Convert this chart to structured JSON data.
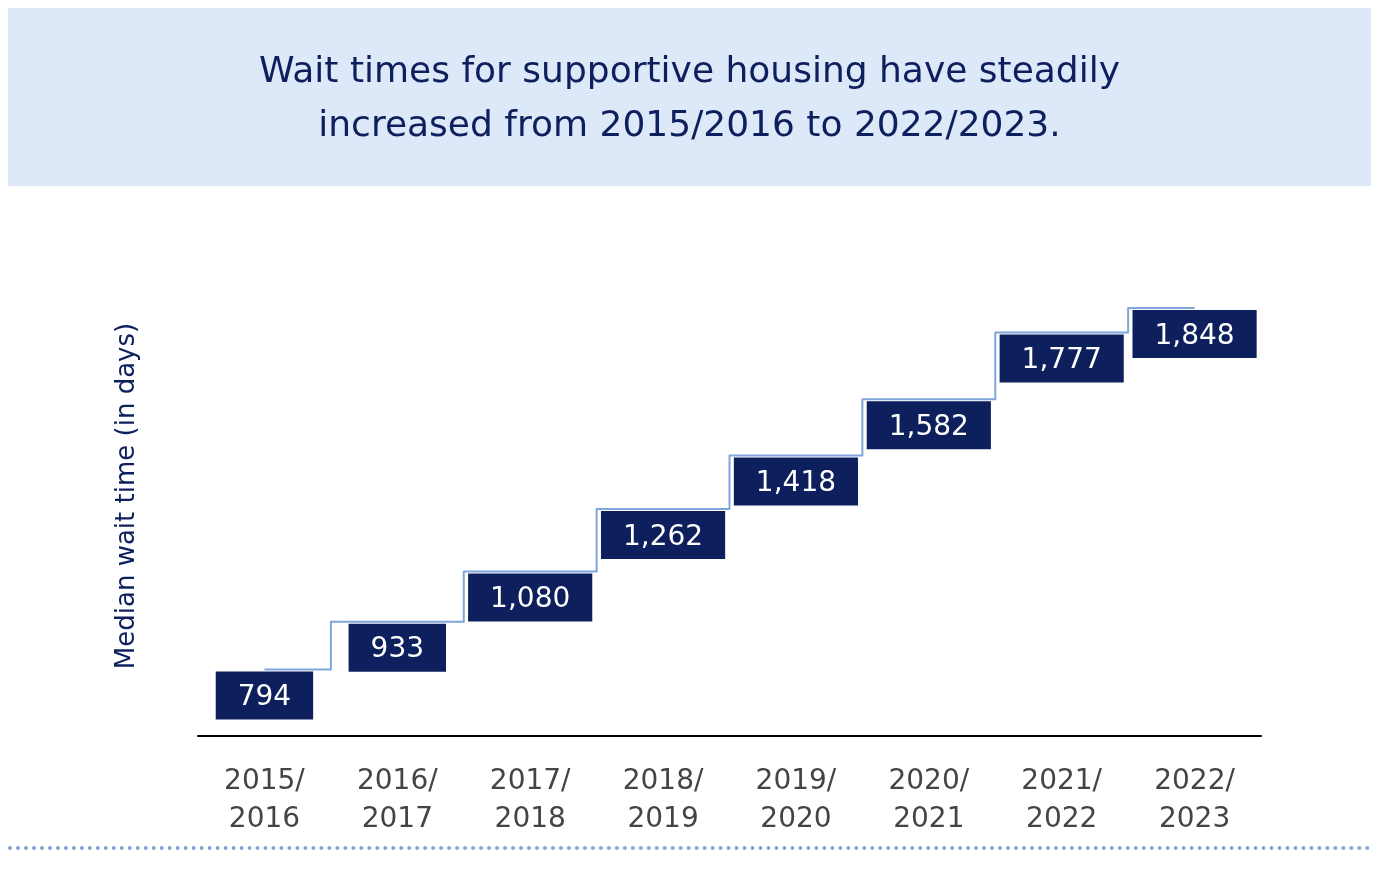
{
  "chart_data": {
    "type": "step",
    "title": "Wait times for supportive housing have steadily increased from 2015/2016 to 2022/2023.",
    "ylabel": "Median wait time (in days)",
    "categories": [
      "2015/2016",
      "2016/2017",
      "2017/2018",
      "2018/2019",
      "2019/2020",
      "2020/2021",
      "2021/2022",
      "2022/2023"
    ],
    "series": [
      {
        "color": "#7fa6dc",
        "values": [
          794,
          933,
          1080,
          1262,
          1418,
          1582,
          1777,
          1848
        ],
        "value_labels": [
          "794",
          "933",
          "1,080",
          "1,262",
          "1,418",
          "1,582",
          "1,777",
          "1,848"
        ]
      }
    ],
    "grid": false,
    "tick_labels": "x",
    "marker": "none"
  }
}
